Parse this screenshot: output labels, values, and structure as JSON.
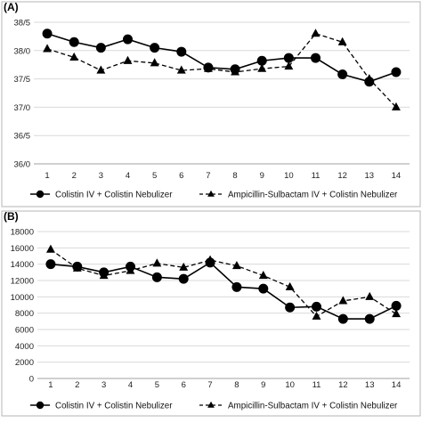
{
  "chart_data": [
    {
      "panel_label": "(A)",
      "type": "line",
      "categories": [
        "1",
        "2",
        "3",
        "4",
        "5",
        "6",
        "7",
        "8",
        "9",
        "10",
        "11",
        "12",
        "13",
        "14"
      ],
      "ylim": [
        36.0,
        38.5
      ],
      "yticks": [
        36.0,
        36.5,
        37.0,
        37.5,
        38.0,
        38.5
      ],
      "ytick_labels": [
        "36/0",
        "36/5",
        "37/0",
        "37/5",
        "38/0",
        "38/5"
      ],
      "grid": true,
      "legend_position": "bottom",
      "series": [
        {
          "name": "Colistin IV + Colistin Nebulizer",
          "style": "solid",
          "marker": "circle",
          "values": [
            38.3,
            38.15,
            38.05,
            38.2,
            38.05,
            37.98,
            37.7,
            37.67,
            37.82,
            37.87,
            37.87,
            37.58,
            37.45,
            37.62
          ]
        },
        {
          "name": "Ampicillin-Sulbactam IV + Colistin Nebulizer",
          "style": "dashed",
          "marker": "triangle",
          "values": [
            38.03,
            37.88,
            37.65,
            37.82,
            37.78,
            37.65,
            37.68,
            37.62,
            37.68,
            37.72,
            38.3,
            38.15,
            37.5,
            37.0
          ]
        }
      ]
    },
    {
      "panel_label": "(B)",
      "type": "line",
      "categories": [
        "1",
        "2",
        "3",
        "4",
        "5",
        "6",
        "7",
        "8",
        "9",
        "10",
        "11",
        "12",
        "13",
        "14"
      ],
      "ylim": [
        0,
        18000
      ],
      "yticks": [
        0,
        2000,
        4000,
        6000,
        8000,
        10000,
        12000,
        14000,
        16000,
        18000
      ],
      "ytick_labels": [
        "0",
        "2000",
        "4000",
        "6000",
        "8000",
        "10000",
        "12000",
        "14000",
        "16000",
        "18000"
      ],
      "grid": true,
      "legend_position": "bottom",
      "series": [
        {
          "name": "Colistin IV + Colistin Nebulizer",
          "style": "solid",
          "marker": "circle",
          "values": [
            14000,
            13700,
            13000,
            13700,
            12400,
            12200,
            14200,
            11200,
            11000,
            8700,
            8800,
            7300,
            7300,
            8900
          ]
        },
        {
          "name": "Ampicillin-Sulbactam IV + Colistin Nebulizer",
          "style": "dashed",
          "marker": "triangle",
          "values": [
            15800,
            13500,
            12600,
            13200,
            14100,
            13600,
            14500,
            13800,
            12600,
            11200,
            7600,
            9500,
            10000,
            7900
          ]
        }
      ]
    }
  ]
}
